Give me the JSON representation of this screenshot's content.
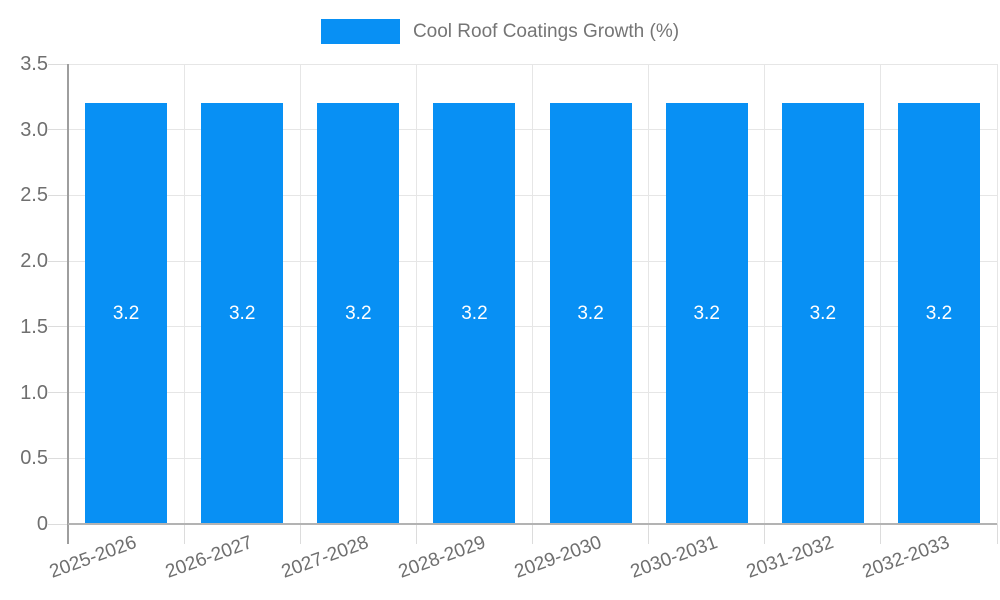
{
  "chart_data": {
    "type": "bar",
    "title": "Cool Roof Coatings Growth (%)",
    "legend": {
      "position": "top",
      "entries": [
        "Cool Roof Coatings Growth (%)"
      ]
    },
    "categories": [
      "2025-2026",
      "2026-2027",
      "2027-2028",
      "2028-2029",
      "2029-2030",
      "2030-2031",
      "2031-2032",
      "2032-2033"
    ],
    "series": [
      {
        "name": "Cool Roof Coatings Growth (%)",
        "values": [
          3.2,
          3.2,
          3.2,
          3.2,
          3.2,
          3.2,
          3.2,
          3.2
        ]
      }
    ],
    "value_labels": [
      "3.2",
      "3.2",
      "3.2",
      "3.2",
      "3.2",
      "3.2",
      "3.2",
      "3.2"
    ],
    "xlabel": "",
    "ylabel": "",
    "ylim": [
      0,
      3.5
    ],
    "yticks": [
      "0",
      "0.5",
      "1.0",
      "1.5",
      "2.0",
      "2.5",
      "3.0",
      "3.5"
    ],
    "grid": true,
    "colors": {
      "bar": "#0890f4",
      "bar_label": "#ffffff",
      "legend_text": "#757575",
      "axis_text": "#6f6f6f",
      "gridline": "#e6e6e6",
      "tick_mark": "#dcdcdc",
      "y_axis_line": "#9e9e9e",
      "x_axis_line": "#b3b3b3"
    }
  }
}
